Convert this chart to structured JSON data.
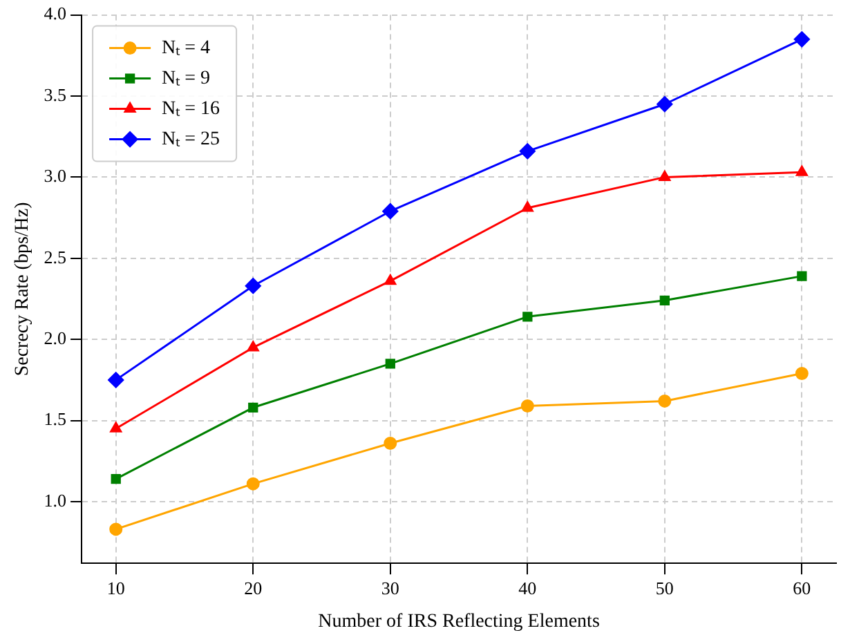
{
  "chart_data": {
    "type": "line",
    "xlabel": "Number of IRS Reflecting Elements",
    "ylabel": "Secrecy Rate (bps/Hz)",
    "x": [
      10,
      20,
      30,
      40,
      50,
      60
    ],
    "series": [
      {
        "name": "Nₜ = 4",
        "color": "#ffa500",
        "marker": "circle",
        "values": [
          0.83,
          1.11,
          1.36,
          1.59,
          1.62,
          1.79
        ]
      },
      {
        "name": "Nₜ = 9",
        "color": "#008000",
        "marker": "square",
        "values": [
          1.14,
          1.58,
          1.85,
          2.14,
          2.24,
          2.39
        ]
      },
      {
        "name": "Nₜ = 16",
        "color": "#ff0000",
        "marker": "triangle",
        "values": [
          1.45,
          1.95,
          2.36,
          2.81,
          3.0,
          3.03
        ]
      },
      {
        "name": "Nₜ = 25",
        "color": "#0000ff",
        "marker": "diamond",
        "values": [
          1.75,
          2.33,
          2.79,
          3.16,
          3.45,
          3.85
        ]
      }
    ],
    "xlim": [
      7.5,
      62.5
    ],
    "xticks": [
      10,
      20,
      30,
      40,
      50,
      60
    ],
    "ylim": [
      0.62,
      4.0
    ],
    "yticks": [
      {
        "value": 1,
        "label": "1.0"
      },
      {
        "value": 1.5,
        "label": "1.5"
      },
      {
        "value": 2,
        "label": "2.0"
      },
      {
        "value": 2.5,
        "label": "2.5"
      },
      {
        "value": 3,
        "label": "3.0"
      },
      {
        "value": 3.5,
        "label": "3.5"
      },
      {
        "value": 4,
        "label": "4.0"
      }
    ],
    "grid": true,
    "legend": "top left",
    "line_style": "solid"
  }
}
